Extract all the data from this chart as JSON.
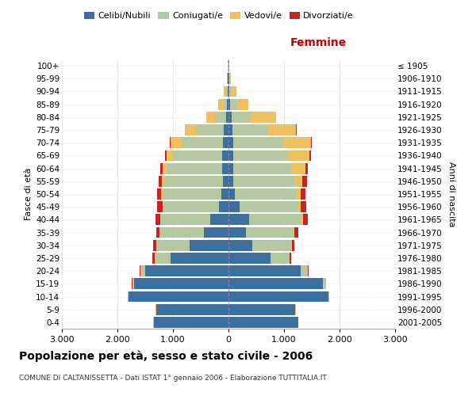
{
  "age_groups": [
    "0-4",
    "5-9",
    "10-14",
    "15-19",
    "20-24",
    "25-29",
    "30-34",
    "35-39",
    "40-44",
    "45-49",
    "50-54",
    "55-59",
    "60-64",
    "65-69",
    "70-74",
    "75-79",
    "80-84",
    "85-89",
    "90-94",
    "95-99",
    "100+"
  ],
  "birth_years": [
    "2001-2005",
    "1996-2000",
    "1991-1995",
    "1986-1990",
    "1981-1985",
    "1976-1980",
    "1971-1975",
    "1966-1970",
    "1961-1965",
    "1956-1960",
    "1951-1955",
    "1946-1950",
    "1941-1945",
    "1936-1940",
    "1931-1935",
    "1926-1930",
    "1921-1925",
    "1916-1920",
    "1911-1915",
    "1906-1910",
    "≤ 1905"
  ],
  "male_celibe": [
    1350,
    1300,
    1800,
    1700,
    1500,
    1050,
    700,
    440,
    330,
    170,
    130,
    100,
    110,
    110,
    100,
    80,
    50,
    25,
    20,
    10,
    5
  ],
  "male_coniugato": [
    5,
    5,
    10,
    30,
    80,
    280,
    600,
    800,
    900,
    1000,
    1050,
    1050,
    1000,
    900,
    750,
    500,
    200,
    80,
    30,
    15,
    5
  ],
  "male_vedovo": [
    5,
    5,
    5,
    5,
    5,
    5,
    5,
    5,
    5,
    20,
    30,
    50,
    80,
    100,
    200,
    200,
    150,
    80,
    30,
    5,
    2
  ],
  "male_divorziato": [
    0,
    0,
    0,
    5,
    10,
    30,
    50,
    60,
    80,
    90,
    80,
    60,
    40,
    30,
    10,
    5,
    5,
    0,
    0,
    0,
    0
  ],
  "female_celibe": [
    1250,
    1200,
    1800,
    1700,
    1300,
    750,
    430,
    320,
    370,
    200,
    120,
    80,
    80,
    80,
    80,
    70,
    50,
    30,
    20,
    10,
    5
  ],
  "female_coniugata": [
    5,
    5,
    10,
    50,
    130,
    350,
    700,
    850,
    950,
    1050,
    1100,
    1100,
    1050,
    1000,
    900,
    650,
    350,
    120,
    40,
    10,
    5
  ],
  "female_vedova": [
    5,
    5,
    5,
    5,
    5,
    5,
    10,
    10,
    20,
    50,
    80,
    150,
    250,
    380,
    500,
    500,
    450,
    200,
    80,
    20,
    5
  ],
  "female_divorziata": [
    0,
    0,
    0,
    5,
    10,
    30,
    50,
    70,
    90,
    100,
    90,
    80,
    50,
    30,
    20,
    10,
    10,
    5,
    0,
    0,
    0
  ],
  "colors": {
    "celibe": "#3b6fa0",
    "coniugato": "#b5c9a0",
    "vedovo": "#f0c060",
    "divorziato": "#cc2222"
  },
  "title": "Popolazione per età, sesso e stato civile - 2006",
  "subtitle": "COMUNE DI CALTANISSETTA - Dati ISTAT 1° gennaio 2006 - Elaborazione TUTTITALIA.IT",
  "xlabel_right": "Femmine",
  "ylabel_left": "Fasce di età",
  "ylabel_right": "Anni di nascita",
  "xlim": 3000,
  "legend_labels": [
    "Celibi/Nubili",
    "Coniugati/e",
    "Vedovi/e",
    "Divorziati/e"
  ],
  "background_color": "#ffffff",
  "grid_color": "#cccccc"
}
